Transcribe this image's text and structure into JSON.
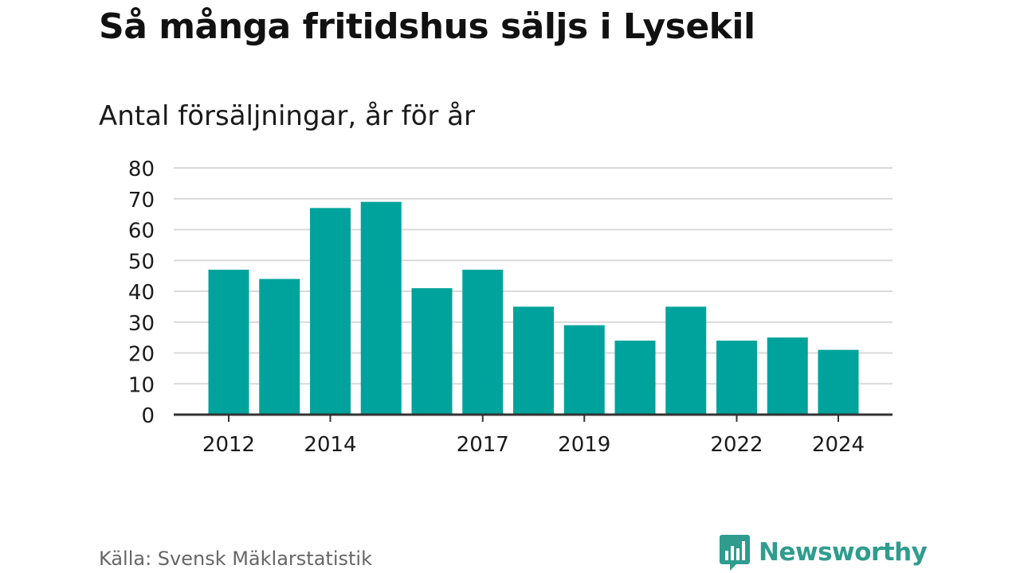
{
  "header": {
    "title": "Så många fritidshus säljs i Lysekil",
    "subtitle": "Antal försäljningar, år för år"
  },
  "footer": {
    "source": "Källa: Svensk Mäklarstatistik",
    "brand_name": "Newsworthy",
    "brand_logo_icon": "bar-chart-speech-bubble-icon"
  },
  "colors": {
    "bar": "#00a39b",
    "grid": "#d9d9d9",
    "axis": "#333333",
    "brand": "#2f9c8e"
  },
  "chart_data": {
    "type": "bar",
    "categories": [
      "2012",
      "2013",
      "2014",
      "2015",
      "2016",
      "2017",
      "2018",
      "2019",
      "2020",
      "2021",
      "2022",
      "2023",
      "2024"
    ],
    "values": [
      47,
      44,
      67,
      69,
      41,
      47,
      35,
      29,
      24,
      35,
      24,
      25,
      21
    ],
    "x_tick_labels": [
      "2012",
      "2014",
      "2017",
      "2019",
      "2022",
      "2024"
    ],
    "y_ticks": [
      0,
      10,
      20,
      30,
      40,
      50,
      60,
      70,
      80
    ],
    "ylim": [
      0,
      80
    ],
    "grid": true,
    "legend": "none"
  }
}
